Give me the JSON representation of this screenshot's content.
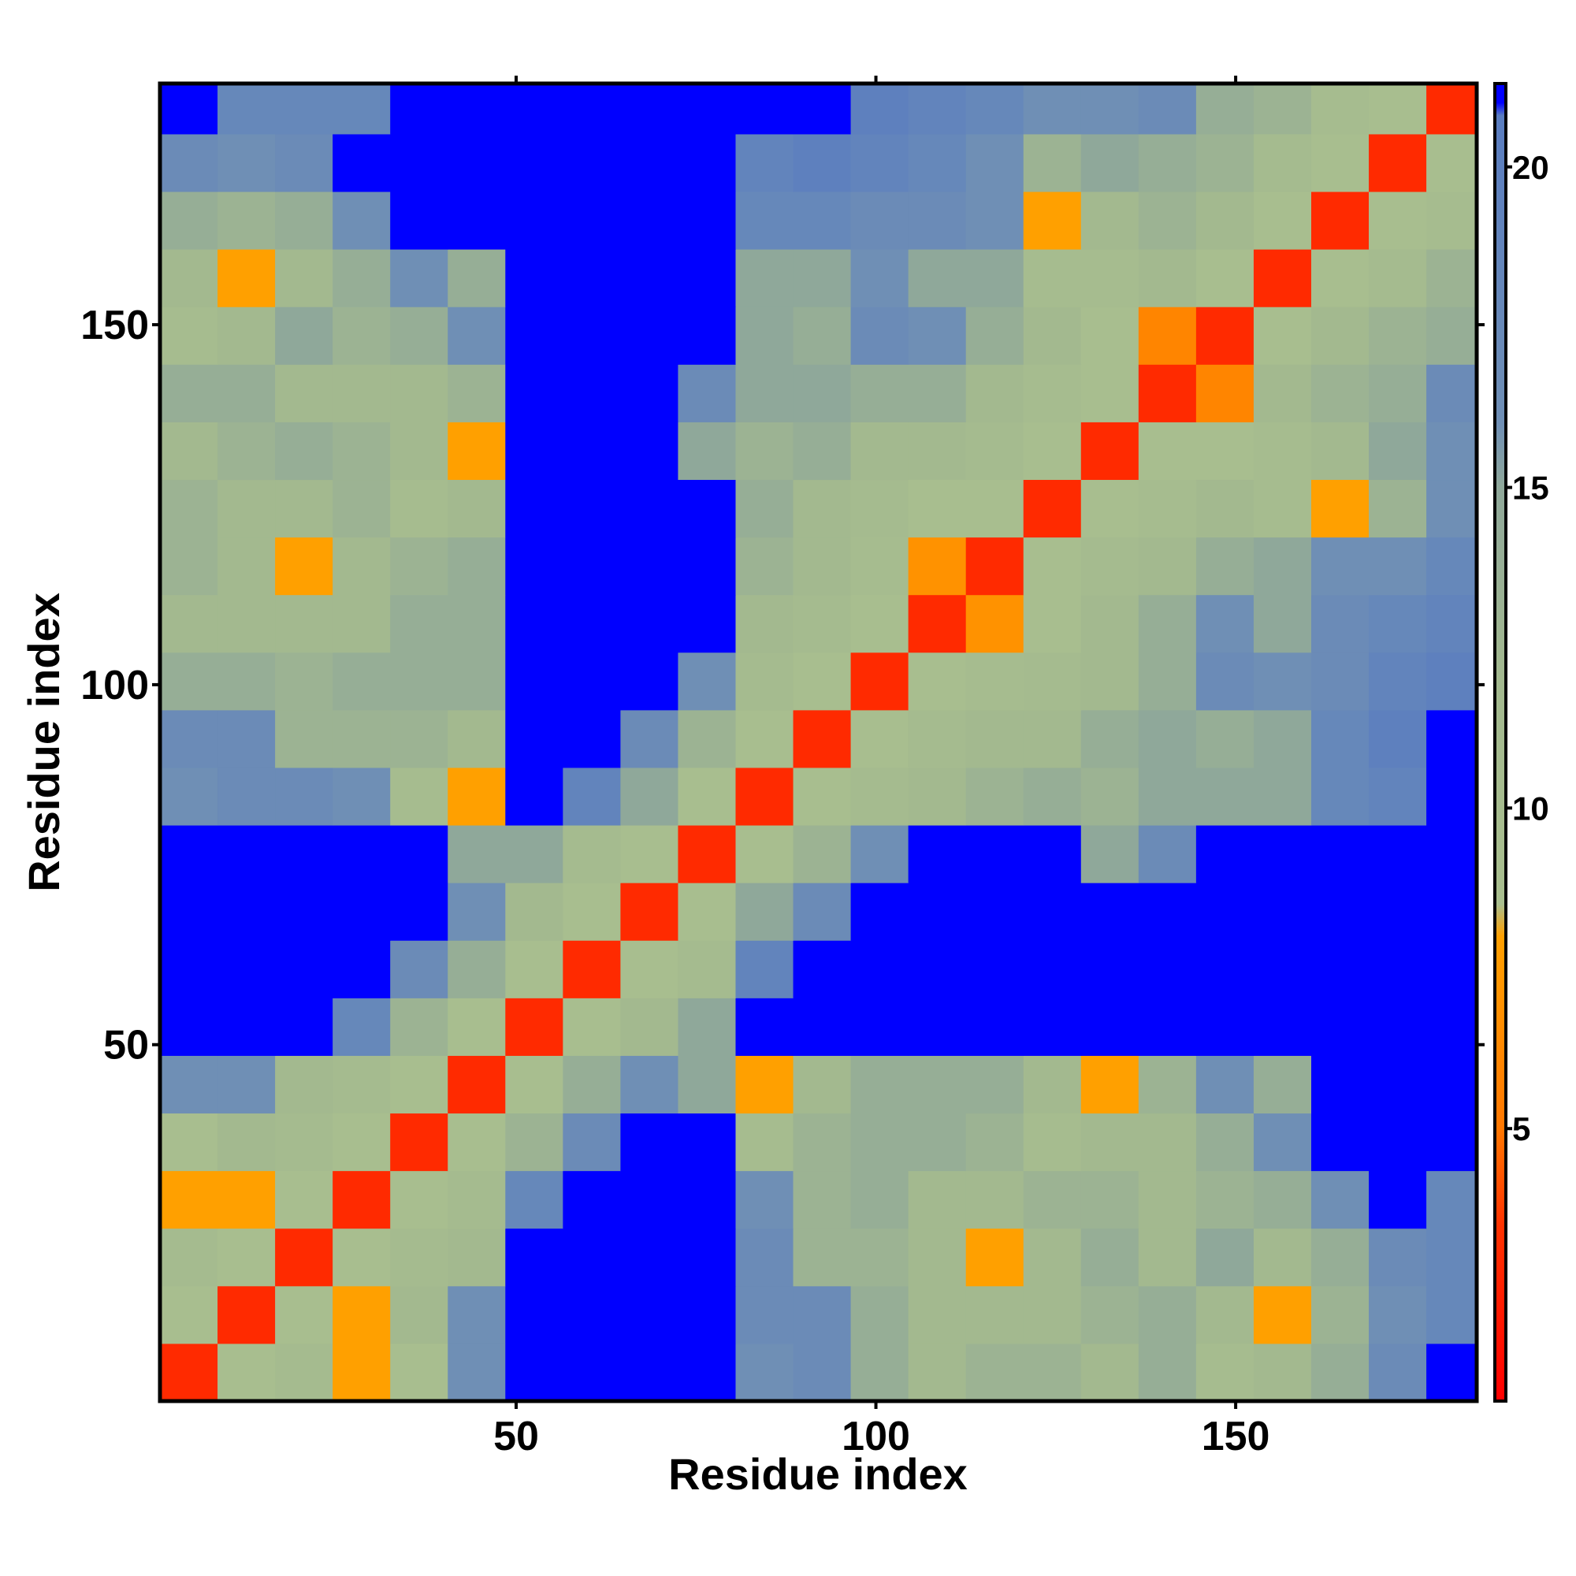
{
  "chart_data": {
    "type": "heatmap",
    "x_label": "Residue index",
    "y_label": "Residue index",
    "x_edges": [
      0.5,
      8.5,
      16.5,
      24.5,
      32.5,
      40.5,
      48.5,
      56.5,
      64.5,
      72.5,
      80.5,
      88.5,
      96.5,
      104.5,
      112.5,
      120.5,
      128.5,
      136.5,
      144.5,
      152.5,
      160.5,
      168.5,
      176.5,
      183.5
    ],
    "y_edges": [
      0.5,
      8.5,
      16.5,
      24.5,
      32.5,
      40.5,
      48.5,
      56.5,
      64.5,
      72.5,
      80.5,
      88.5,
      96.5,
      104.5,
      112.5,
      120.5,
      128.5,
      136.5,
      144.5,
      152.5,
      160.5,
      168.5,
      176.5,
      183.5
    ],
    "xlim": [
      0.5,
      183.5
    ],
    "ylim": [
      0.5,
      183.5
    ],
    "xticks": [
      50,
      100,
      150
    ],
    "yticks": [
      50,
      100,
      150
    ],
    "z": [
      [
        3,
        9,
        11,
        8,
        9,
        16,
        21,
        21,
        21,
        21,
        16,
        17,
        14,
        12,
        13,
        13,
        12,
        14,
        10,
        12,
        14,
        17,
        21
      ],
      [
        9,
        3,
        9,
        8,
        12,
        16,
        21,
        21,
        21,
        21,
        17,
        17,
        14,
        12,
        12,
        12,
        13,
        14,
        12,
        8,
        13,
        16,
        18
      ],
      [
        11,
        9,
        3,
        9,
        11,
        12,
        21,
        21,
        21,
        21,
        17,
        13,
        13,
        12,
        8,
        12,
        14,
        12,
        15,
        12,
        14,
        17,
        18
      ],
      [
        8,
        8,
        9,
        3,
        9,
        11,
        18,
        21,
        21,
        21,
        16,
        13,
        14,
        12,
        12,
        13,
        13,
        12,
        13,
        14,
        16,
        21,
        18
      ],
      [
        9,
        12,
        11,
        9,
        3,
        9,
        13,
        17,
        21,
        21,
        10,
        13,
        14,
        14,
        13,
        10,
        12,
        12,
        14,
        16,
        21,
        21,
        21
      ],
      [
        16,
        16,
        12,
        11,
        9,
        3,
        9,
        14,
        16,
        15,
        8,
        12,
        14,
        14,
        14,
        12,
        8,
        13,
        16,
        14,
        21,
        21,
        21
      ],
      [
        21,
        21,
        21,
        18,
        13,
        9,
        3,
        9,
        12,
        15,
        21,
        21,
        21,
        21,
        21,
        21,
        21,
        21,
        21,
        21,
        21,
        21,
        21
      ],
      [
        21,
        21,
        21,
        21,
        17,
        14,
        9,
        3,
        9,
        11,
        19,
        21,
        21,
        21,
        21,
        21,
        21,
        21,
        21,
        21,
        21,
        21,
        21
      ],
      [
        21,
        21,
        21,
        21,
        21,
        16,
        12,
        9,
        3,
        9,
        15,
        17,
        21,
        21,
        21,
        21,
        21,
        21,
        21,
        21,
        21,
        21,
        21
      ],
      [
        21,
        21,
        21,
        21,
        21,
        15,
        15,
        11,
        9,
        3,
        9,
        13,
        16,
        21,
        21,
        21,
        15,
        17,
        21,
        21,
        21,
        21,
        21
      ],
      [
        16,
        17,
        17,
        16,
        10,
        8,
        21,
        19,
        15,
        9,
        3,
        9,
        11,
        12,
        13,
        14,
        13,
        15,
        15,
        15,
        18,
        19,
        21
      ],
      [
        17,
        17,
        13,
        13,
        13,
        12,
        21,
        21,
        17,
        13,
        9,
        3,
        9,
        11,
        12,
        12,
        14,
        15,
        14,
        15,
        18,
        20,
        21
      ],
      [
        14,
        14,
        13,
        14,
        14,
        14,
        21,
        21,
        21,
        16,
        11,
        9,
        3,
        9,
        10,
        11,
        12,
        14,
        17,
        16,
        17,
        19,
        20
      ],
      [
        12,
        12,
        12,
        12,
        14,
        14,
        21,
        21,
        21,
        21,
        12,
        11,
        9,
        3,
        7,
        9,
        12,
        14,
        16,
        15,
        17,
        18,
        19
      ],
      [
        13,
        12,
        8,
        12,
        13,
        14,
        21,
        21,
        21,
        21,
        13,
        12,
        10,
        7,
        3,
        9,
        11,
        12,
        14,
        15,
        16,
        16,
        18
      ],
      [
        13,
        12,
        12,
        13,
        10,
        12,
        21,
        21,
        21,
        21,
        14,
        12,
        11,
        9,
        9,
        3,
        9,
        10,
        12,
        10,
        8,
        13,
        16
      ],
      [
        12,
        13,
        14,
        13,
        12,
        8,
        21,
        21,
        21,
        15,
        13,
        14,
        12,
        12,
        11,
        9,
        3,
        9,
        9,
        10,
        12,
        15,
        16
      ],
      [
        14,
        14,
        12,
        12,
        12,
        13,
        21,
        21,
        21,
        17,
        15,
        15,
        14,
        14,
        12,
        10,
        9,
        3,
        6,
        12,
        13,
        14,
        17
      ],
      [
        10,
        12,
        15,
        13,
        14,
        16,
        21,
        21,
        21,
        21,
        15,
        14,
        17,
        16,
        14,
        12,
        9,
        6,
        3,
        9,
        12,
        13,
        14
      ],
      [
        12,
        8,
        12,
        14,
        16,
        14,
        21,
        21,
        21,
        21,
        15,
        15,
        16,
        15,
        15,
        10,
        10,
        12,
        9,
        3,
        9,
        11,
        13
      ],
      [
        14,
        13,
        14,
        16,
        21,
        21,
        21,
        21,
        21,
        21,
        18,
        18,
        17,
        17,
        16,
        8,
        12,
        13,
        12,
        9,
        3,
        9,
        10
      ],
      [
        17,
        16,
        17,
        21,
        21,
        21,
        21,
        21,
        21,
        21,
        19,
        20,
        19,
        18,
        16,
        13,
        15,
        14,
        13,
        11,
        9,
        3,
        9
      ],
      [
        21,
        18,
        18,
        18,
        21,
        21,
        21,
        21,
        21,
        21,
        21,
        21,
        20,
        19,
        18,
        16,
        16,
        17,
        14,
        13,
        10,
        9,
        3
      ]
    ],
    "colorbar": {
      "lim": [
        0.75,
        21.3
      ],
      "ticks": [
        5,
        10,
        15,
        20
      ]
    },
    "colormap": [
      {
        "value": 0.75,
        "color": "#ff0000"
      },
      {
        "value": 3.5,
        "color": "#ff3300"
      },
      {
        "value": 5,
        "color": "#ff7700"
      },
      {
        "value": 8,
        "color": "#ffa000"
      },
      {
        "value": 8.5,
        "color": "#a9bf8f"
      },
      {
        "value": 12,
        "color": "#a3b98f"
      },
      {
        "value": 15,
        "color": "#8fa89a"
      },
      {
        "value": 16,
        "color": "#6f8fb5"
      },
      {
        "value": 20.8,
        "color": "#5a7dc0"
      },
      {
        "value": 21,
        "color": "#0000ff"
      },
      {
        "value": 21.3,
        "color": "#0000ff"
      }
    ]
  }
}
